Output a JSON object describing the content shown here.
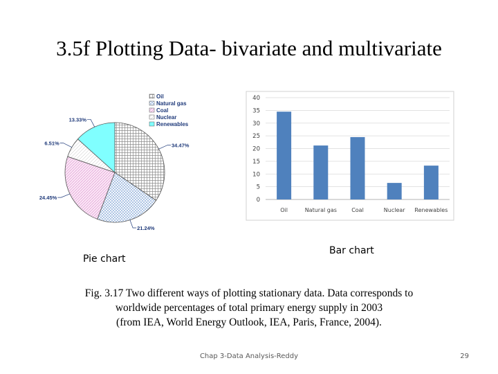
{
  "slide": {
    "title": "3.5f Plotting Data- bivariate and multivariate",
    "pie_caption": "Pie chart",
    "bar_caption": "Bar chart",
    "figure_caption": [
      "Fig. 3.17 Two different ways of plotting stationary data. Data corresponds to",
      "worldwide percentages of total primary energy supply in 2003",
      "(from IEA, World Energy Outlook, IEA, Paris, France, 2004)."
    ],
    "footer": "Chap 3-Data Analysis-Reddy",
    "page_number": "29"
  },
  "chart_data": [
    {
      "type": "pie",
      "categories": [
        "Oil",
        "Natural gas",
        "Coal",
        "Nuclear",
        "Renewables"
      ],
      "values": [
        34.47,
        21.24,
        24.45,
        6.51,
        13.33
      ],
      "slice_labels": [
        "34.47%",
        "21.24%",
        "24.45%",
        "6.51%",
        "13.33%"
      ],
      "legend": [
        "Oil",
        "Natural gas",
        "Coal",
        "Nuclear",
        "Renewables"
      ],
      "legend_position": "top-right",
      "colors": [
        "#d9d9d9",
        "#bcd4ee",
        "#efc3e6",
        "#f2f2f2",
        "#80ffff"
      ]
    },
    {
      "type": "bar",
      "categories": [
        "Oil",
        "Natural gas",
        "Coal",
        "Nuclear",
        "Renewables"
      ],
      "values": [
        34.5,
        21.2,
        24.5,
        6.5,
        13.3
      ],
      "ylim": [
        0,
        40
      ],
      "yticks": [
        0,
        5,
        10,
        15,
        20,
        25,
        30,
        35,
        40
      ],
      "grid": true,
      "bar_color": "#4f81bd",
      "title": "",
      "xlabel": "",
      "ylabel": ""
    }
  ]
}
